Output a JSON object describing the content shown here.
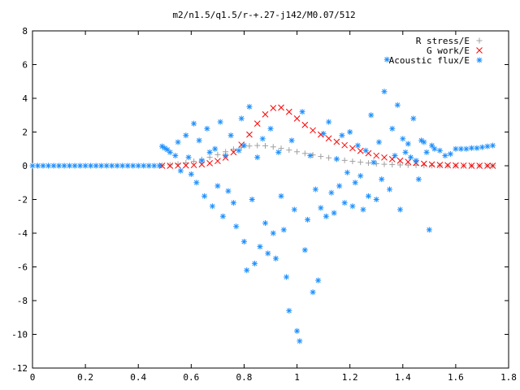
{
  "chart_data": {
    "type": "scatter",
    "title": "m2/n1.5/q1.5/r-+.27-j142/M0.07/512",
    "xlabel": "",
    "ylabel": "",
    "xlim": [
      0,
      1.8
    ],
    "ylim": [
      -12,
      8
    ],
    "xticks": [
      0,
      0.2,
      0.4,
      0.6,
      0.8,
      1,
      1.2,
      1.4,
      1.6,
      1.8
    ],
    "yticks": [
      -12,
      -10,
      -8,
      -6,
      -4,
      -2,
      0,
      2,
      4,
      6,
      8
    ],
    "xtick_labels": [
      "0",
      "0.2",
      "0.4",
      "0.6",
      "0.8",
      "1",
      "1.2",
      "1.4",
      "1.6",
      "1.8"
    ],
    "ytick_labels": [
      "-12",
      "-10",
      "-8",
      "-6",
      "-4",
      "-2",
      "0",
      "2",
      "4",
      "6",
      "8"
    ],
    "legend_position": "top-right",
    "grid": false,
    "series": [
      {
        "name": "R stress/E",
        "marker": "plus",
        "color": "#a0a0a0",
        "x": [
          0.49,
          0.52,
          0.55,
          0.58,
          0.61,
          0.64,
          0.67,
          0.7,
          0.73,
          0.76,
          0.79,
          0.82,
          0.85,
          0.88,
          0.91,
          0.94,
          0.97,
          1.0,
          1.03,
          1.06,
          1.09,
          1.12,
          1.15,
          1.18,
          1.21,
          1.24,
          1.27,
          1.3,
          1.33,
          1.36,
          1.39,
          1.42,
          1.45,
          1.48,
          1.51,
          1.54,
          1.57,
          1.6,
          1.63,
          1.66,
          1.69,
          1.72,
          1.74
        ],
        "y": [
          0.02,
          0.05,
          0.1,
          0.17,
          0.26,
          0.37,
          0.5,
          0.66,
          0.83,
          0.98,
          1.1,
          1.17,
          1.2,
          1.18,
          1.12,
          1.03,
          0.93,
          0.83,
          0.73,
          0.64,
          0.55,
          0.47,
          0.39,
          0.32,
          0.26,
          0.21,
          0.16,
          0.12,
          0.09,
          0.07,
          0.05,
          0.04,
          0.03,
          0.02,
          0.01,
          0.01,
          0.0,
          0.0,
          0.0,
          0.0,
          0.0,
          0.0,
          0.0
        ]
      },
      {
        "name": "G work/E",
        "marker": "cross",
        "color": "#ff0000",
        "x": [
          0.49,
          0.52,
          0.55,
          0.58,
          0.61,
          0.64,
          0.67,
          0.7,
          0.73,
          0.76,
          0.79,
          0.82,
          0.85,
          0.88,
          0.91,
          0.94,
          0.97,
          1.0,
          1.03,
          1.06,
          1.09,
          1.12,
          1.15,
          1.18,
          1.21,
          1.24,
          1.27,
          1.3,
          1.33,
          1.36,
          1.39,
          1.42,
          1.45,
          1.48,
          1.51,
          1.54,
          1.57,
          1.6,
          1.63,
          1.66,
          1.69,
          1.72,
          1.74
        ],
        "y": [
          0.0,
          0.0,
          0.01,
          0.02,
          0.04,
          0.08,
          0.15,
          0.28,
          0.48,
          0.8,
          1.25,
          1.85,
          2.5,
          3.05,
          3.42,
          3.45,
          3.2,
          2.8,
          2.42,
          2.1,
          1.85,
          1.62,
          1.42,
          1.22,
          1.04,
          0.88,
          0.74,
          0.6,
          0.49,
          0.39,
          0.3,
          0.23,
          0.17,
          0.12,
          0.08,
          0.05,
          0.03,
          0.02,
          0.01,
          0.0,
          0.0,
          0.0,
          0.0
        ]
      },
      {
        "name": "Acoustic flux/E",
        "marker": "star",
        "color": "#1e90ff",
        "x": [
          0.0,
          0.02,
          0.04,
          0.06,
          0.08,
          0.1,
          0.12,
          0.14,
          0.16,
          0.18,
          0.2,
          0.22,
          0.24,
          0.26,
          0.28,
          0.3,
          0.32,
          0.34,
          0.36,
          0.38,
          0.4,
          0.42,
          0.44,
          0.46,
          0.48,
          0.49,
          0.5,
          0.51,
          0.52,
          0.54,
          0.55,
          0.56,
          0.58,
          0.59,
          0.6,
          0.61,
          0.62,
          0.63,
          0.64,
          0.65,
          0.66,
          0.67,
          0.68,
          0.69,
          0.7,
          0.71,
          0.72,
          0.73,
          0.74,
          0.75,
          0.76,
          0.77,
          0.78,
          0.79,
          0.8,
          0.8,
          0.81,
          0.82,
          0.83,
          0.84,
          0.85,
          0.86,
          0.87,
          0.88,
          0.89,
          0.9,
          0.91,
          0.92,
          0.93,
          0.94,
          0.95,
          0.96,
          0.97,
          0.98,
          0.99,
          1.0,
          1.01,
          1.02,
          1.03,
          1.04,
          1.05,
          1.06,
          1.07,
          1.08,
          1.09,
          1.1,
          1.11,
          1.12,
          1.13,
          1.14,
          1.15,
          1.16,
          1.17,
          1.18,
          1.19,
          1.2,
          1.21,
          1.22,
          1.23,
          1.24,
          1.25,
          1.26,
          1.27,
          1.28,
          1.29,
          1.3,
          1.31,
          1.32,
          1.33,
          1.34,
          1.35,
          1.36,
          1.37,
          1.38,
          1.39,
          1.4,
          1.41,
          1.42,
          1.43,
          1.44,
          1.45,
          1.46,
          1.47,
          1.48,
          1.49,
          1.5,
          1.51,
          1.52,
          1.54,
          1.56,
          1.58,
          1.6,
          1.62,
          1.64,
          1.66,
          1.68,
          1.7,
          1.72,
          1.74
        ],
        "y": [
          0,
          0,
          0,
          0,
          0,
          0,
          0,
          0,
          0,
          0,
          0,
          0,
          0,
          0,
          0,
          0,
          0,
          0,
          0,
          0,
          0,
          0,
          0,
          0,
          0,
          1.15,
          1.05,
          0.95,
          0.8,
          0.6,
          1.4,
          -0.3,
          1.8,
          0.5,
          -0.5,
          2.5,
          -1.0,
          1.5,
          0.3,
          -1.8,
          2.2,
          0.8,
          -2.4,
          1.0,
          -1.2,
          2.6,
          -3.0,
          0.6,
          -1.5,
          1.8,
          -2.2,
          -3.6,
          0.9,
          2.8,
          -4.5,
          1.2,
          -6.2,
          3.5,
          -2.0,
          -5.8,
          0.5,
          -4.8,
          1.6,
          -3.4,
          -5.2,
          2.2,
          -4.0,
          -5.5,
          0.8,
          -1.8,
          -3.8,
          -6.6,
          -8.6,
          1.5,
          -2.6,
          -9.8,
          -10.4,
          3.2,
          -5.0,
          -3.2,
          0.6,
          -7.5,
          -1.4,
          -6.8,
          -2.5,
          1.9,
          -3.0,
          2.6,
          -1.6,
          -2.8,
          0.4,
          -1.2,
          1.8,
          -2.2,
          -0.4,
          2.0,
          -2.4,
          -1.0,
          1.2,
          -0.6,
          -2.6,
          0.9,
          -1.8,
          3.0,
          0.2,
          -2.0,
          1.4,
          -0.8,
          4.4,
          6.3,
          -1.4,
          2.2,
          0.6,
          3.6,
          -2.6,
          1.6,
          0.8,
          1.3,
          0.5,
          2.8,
          0.3,
          -0.8,
          1.5,
          1.4,
          0.8,
          -3.8,
          1.2,
          1.0,
          0.9,
          0.6,
          0.7,
          1.0,
          1.0,
          1.0,
          1.05,
          1.05,
          1.1,
          1.15,
          1.2
        ]
      }
    ]
  }
}
